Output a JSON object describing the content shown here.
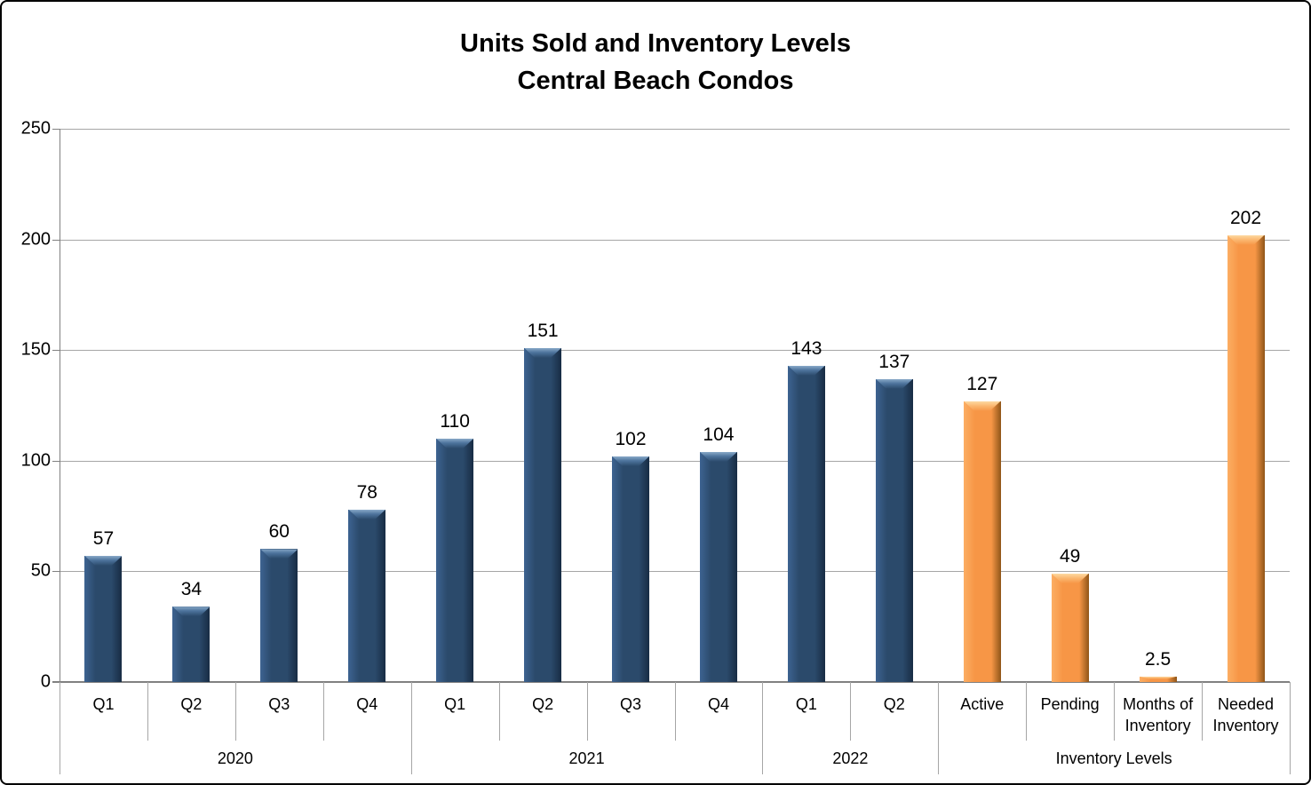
{
  "title": {
    "line1": "Units Sold and Inventory Levels",
    "line2": "Central Beach Condos"
  },
  "chart_data": {
    "type": "bar",
    "title": "Units Sold and Inventory Levels",
    "subtitle": "Central Beach Condos",
    "categories": [
      "Q1",
      "Q2",
      "Q3",
      "Q4",
      "Q1",
      "Q2",
      "Q3",
      "Q4",
      "Q1",
      "Q2",
      "Active",
      "Pending",
      "Months of Inventory",
      "Needed Inventory"
    ],
    "groups": [
      {
        "label": "2020",
        "span": 4
      },
      {
        "label": "2021",
        "span": 4
      },
      {
        "label": "2022",
        "span": 2
      },
      {
        "label": "Inventory Levels",
        "span": 4
      }
    ],
    "series": [
      {
        "name": "Units Sold / Inventory",
        "values": [
          57,
          34,
          60,
          78,
          110,
          151,
          102,
          104,
          143,
          137,
          127,
          49,
          2.5,
          202
        ]
      }
    ],
    "data_labels": [
      "57",
      "34",
      "60",
      "78",
      "110",
      "151",
      "102",
      "104",
      "143",
      "137",
      "127",
      "49",
      "2.5",
      "202"
    ],
    "point_colors": [
      "#2b4a6b",
      "#2b4a6b",
      "#2b4a6b",
      "#2b4a6b",
      "#2b4a6b",
      "#2b4a6b",
      "#2b4a6b",
      "#2b4a6b",
      "#2b4a6b",
      "#2b4a6b",
      "#f79646",
      "#f79646",
      "#f79646",
      "#f79646"
    ],
    "ylim": [
      0,
      250
    ],
    "yticks": [
      0,
      50,
      100,
      150,
      200,
      250
    ],
    "xlabel": "",
    "ylabel": "",
    "grid": true,
    "legend": "none"
  },
  "colors": {
    "bar_units_sold": "#2b4a6b",
    "bar_inventory": "#f79646",
    "gridline": "#a6a6a6",
    "axis_line": "#808080",
    "text": "#000000",
    "background": "#ffffff",
    "border": "#000000"
  }
}
